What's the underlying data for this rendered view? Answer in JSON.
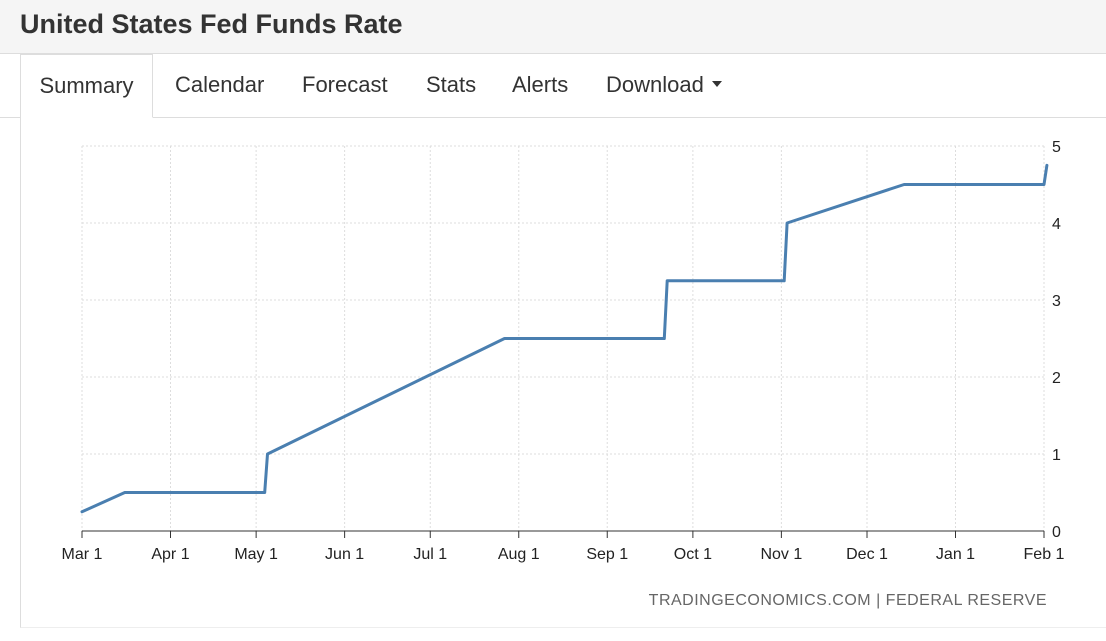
{
  "header": {
    "title": "United States Fed Funds Rate"
  },
  "tabs": [
    {
      "label": "Summary",
      "active": true
    },
    {
      "label": "Calendar"
    },
    {
      "label": "Forecast"
    },
    {
      "label": "Stats"
    },
    {
      "label": "Alerts"
    },
    {
      "label": "Download",
      "icon": "caret-down-icon"
    }
  ],
  "credit": "TRADINGECONOMICS.COM | FEDERAL RESERVE",
  "colors": {
    "line": "#4a7fb0",
    "grid": "#dddddd"
  },
  "chart_data": {
    "type": "line",
    "title": "",
    "xlabel": "",
    "ylabel": "",
    "ylim": [
      0,
      5
    ],
    "yticks": [
      0,
      1,
      2,
      3,
      4,
      5
    ],
    "y_axis_side": "right",
    "grid": true,
    "xticks": [
      "Mar 1",
      "Apr 1",
      "May 1",
      "Jun 1",
      "Jul 1",
      "Aug 1",
      "Sep 1",
      "Oct 1",
      "Nov 1",
      "Dec 1",
      "Jan 1",
      "Feb 1"
    ],
    "series": [
      {
        "x": [
          "Mar 1",
          "Mar 16",
          "May 4",
          "May 5",
          "Jul 27",
          "Sep 21",
          "Sep 22",
          "Nov 2",
          "Nov 3",
          "Dec 14",
          "Feb 1",
          "Feb 2"
        ],
        "values": [
          0.25,
          0.5,
          0.5,
          1.0,
          2.5,
          2.5,
          3.25,
          3.25,
          4.0,
          4.5,
          4.5,
          4.75
        ]
      }
    ]
  }
}
